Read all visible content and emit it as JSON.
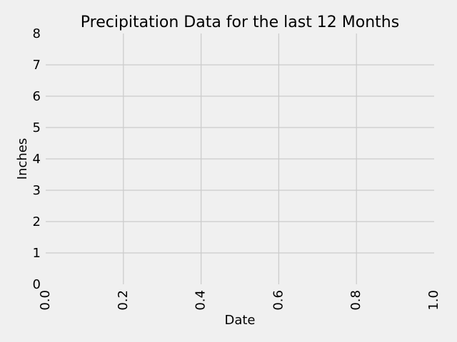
{
  "chart_data": {
    "type": "line",
    "title": "Precipitation Data for the last 12 Months",
    "xlabel": "Date",
    "ylabel": "Inches",
    "xlim": [
      0.0,
      1.0
    ],
    "ylim": [
      0,
      8
    ],
    "x_ticks": [
      0.0,
      0.2,
      0.4,
      0.6,
      0.8,
      1.0
    ],
    "x_tick_labels": [
      "0.0",
      "0.2",
      "0.4",
      "0.6",
      "0.8",
      "1.0"
    ],
    "y_ticks": [
      0,
      1,
      2,
      3,
      4,
      5,
      6,
      7,
      8
    ],
    "y_tick_labels": [
      "0",
      "1",
      "2",
      "3",
      "4",
      "5",
      "6",
      "7",
      "8"
    ],
    "x_tick_rotation_deg": 90,
    "grid": true,
    "series": []
  },
  "colors": {
    "background": "#f0f0f0",
    "grid": "#cbcbcb",
    "text": "#000000"
  }
}
